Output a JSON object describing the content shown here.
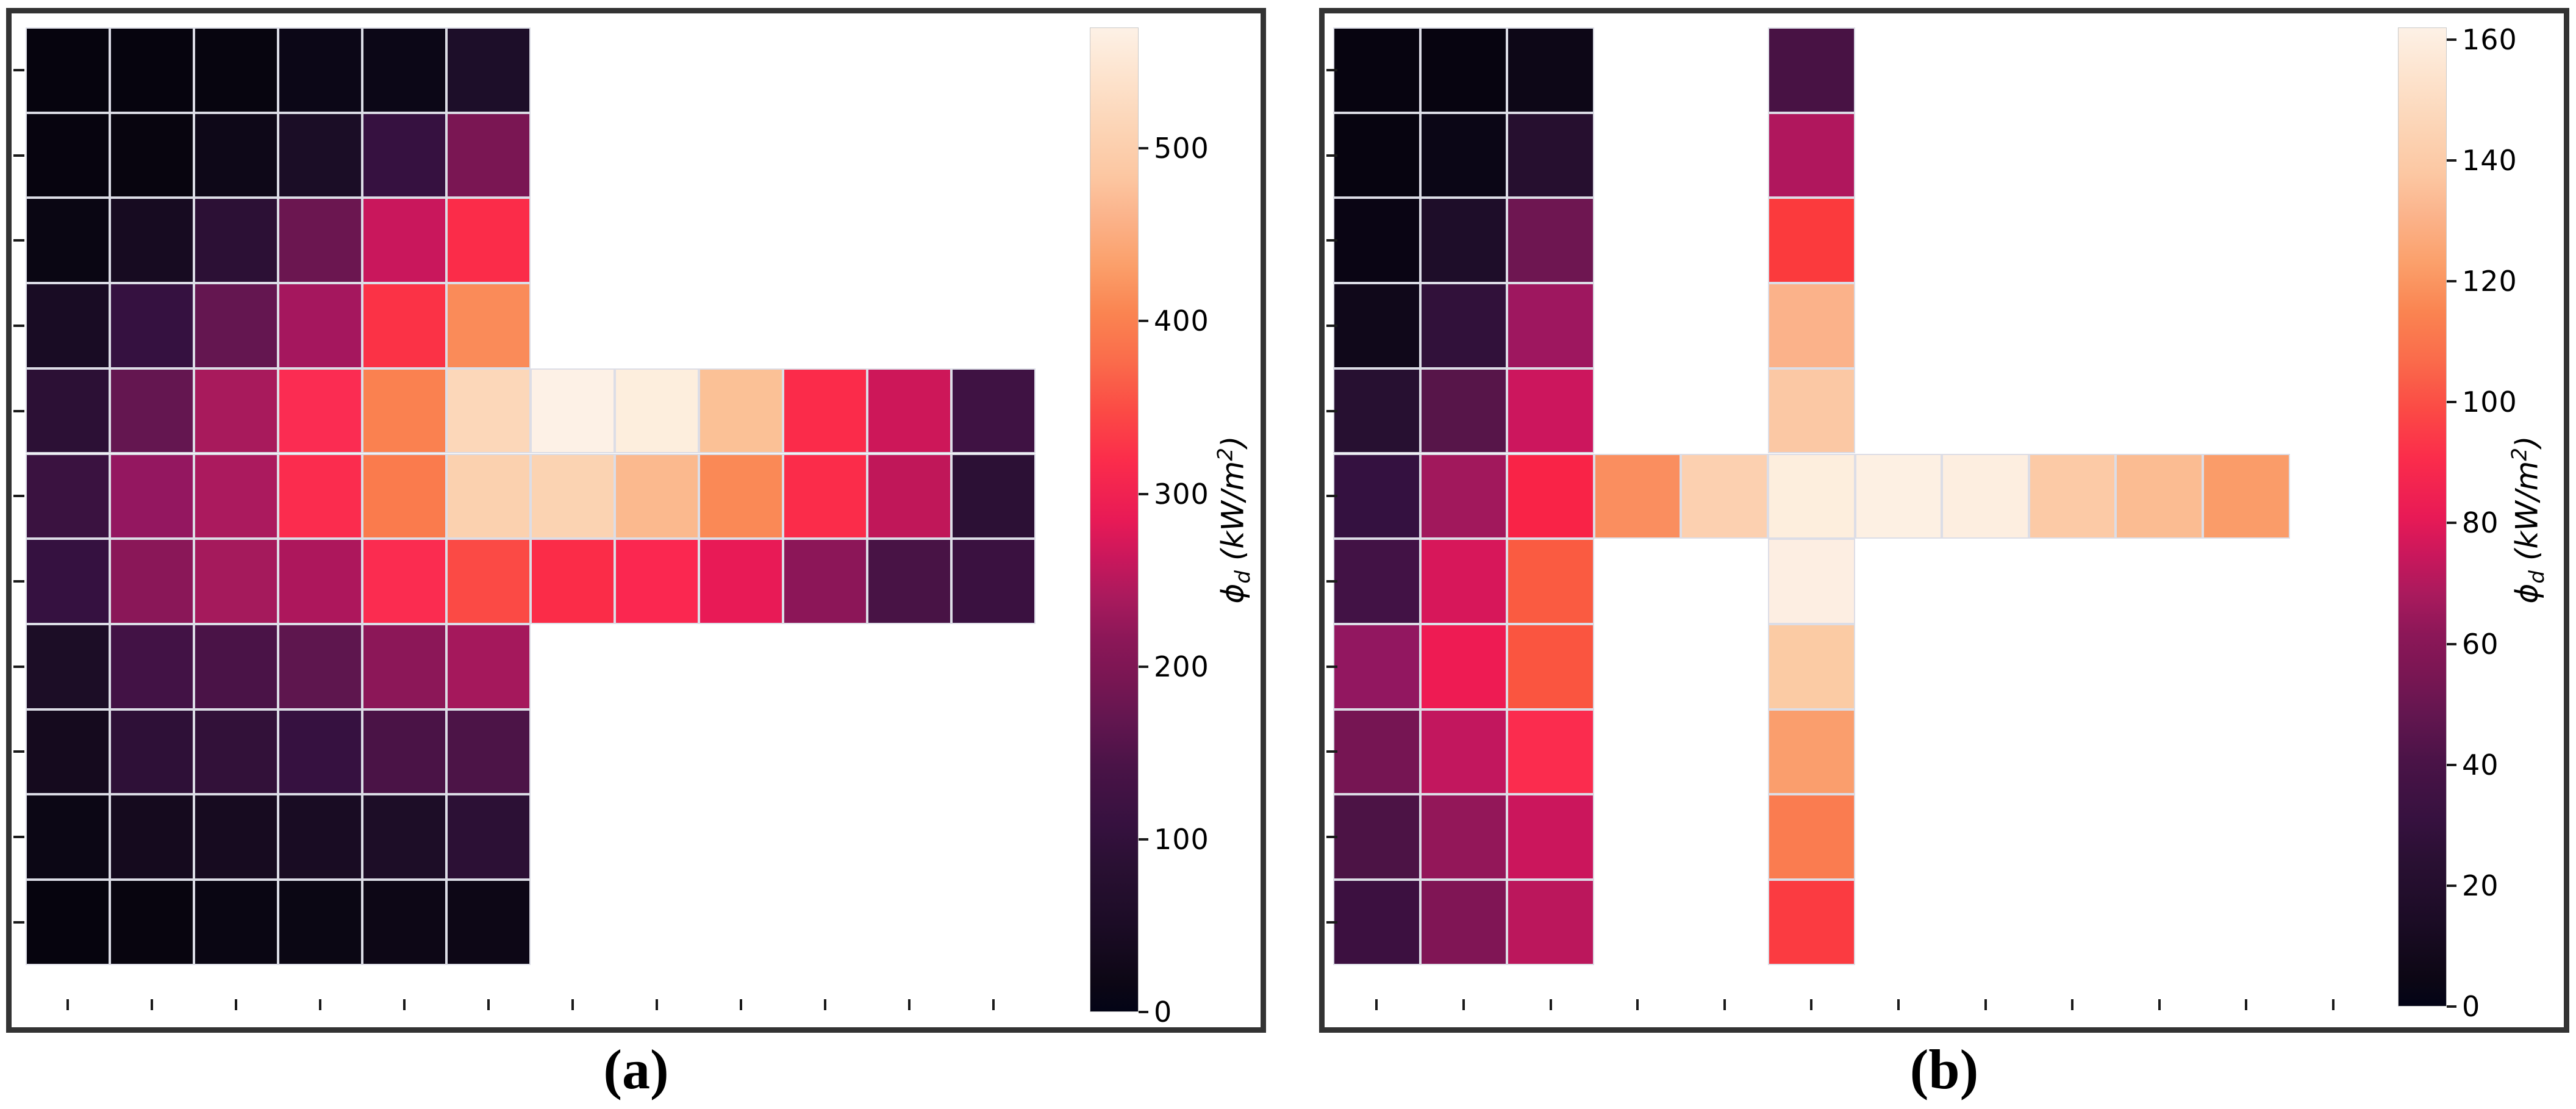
{
  "figure": {
    "background": "#ffffff",
    "frame_color": "#333333",
    "grid_line_color": "#dcdde6",
    "colormap": "rocket"
  },
  "panels": [
    {
      "id": "a",
      "caption": "(a)",
      "colorbar": {
        "vmin": 0,
        "vmax": 570,
        "ticks": [
          0,
          100,
          200,
          300,
          400,
          500
        ],
        "label": {
          "phi": "ϕ",
          "sub": "d",
          "units_open": " (kW/m",
          "sup": "2",
          "units_close": ")"
        }
      },
      "heatmap": {
        "rows": 11,
        "cols": 12,
        "cell_colors": [
          [
            "#06040e",
            "#06040e",
            "#07050f",
            "#0c0717",
            "#0c0717",
            "#1d0e29",
            null,
            null,
            null,
            null,
            null,
            null
          ],
          [
            "#07040f",
            "#08050f",
            "#0e0818",
            "#1b0d26",
            "#361140",
            "#7a1653",
            null,
            null,
            null,
            null,
            null,
            null
          ],
          [
            "#0a0613",
            "#170b21",
            "#2c1035",
            "#6b1650",
            "#c9175c",
            "#fb2c49",
            null,
            null,
            null,
            null,
            null,
            null
          ],
          [
            "#190c24",
            "#351140",
            "#641650",
            "#a5175e",
            "#fb3246",
            "#fa8b59",
            null,
            null,
            null,
            null,
            null,
            null
          ],
          [
            "#2c1035",
            "#641650",
            "#a81a5c",
            "#fb2c52",
            "#fa8150",
            "#fcd7b9",
            "#fdf1e6",
            "#fdeedd",
            "#fbc196",
            "#fb2b4a",
            "#cd1759",
            "#3f1243"
          ],
          [
            "#3a1240",
            "#941760",
            "#ab1a5e",
            "#fb2c4e",
            "#fa7b4d",
            "#fbd1af",
            "#fbd3b2",
            "#fbb98e",
            "#fa8956",
            "#fb2c4a",
            "#c01759",
            "#2c1035"
          ],
          [
            "#351140",
            "#8a1758",
            "#a51a5c",
            "#ad175c",
            "#fb2c50",
            "#fb4a45",
            "#fb2c48",
            "#fb2750",
            "#e81a56",
            "#8c1658",
            "#481345",
            "#3a1140"
          ],
          [
            "#1c0d26",
            "#421245",
            "#4a1347",
            "#5e164e",
            "#8c1758",
            "#a5185c",
            null,
            null,
            null,
            null,
            null,
            null
          ],
          [
            "#150a1e",
            "#2e1037",
            "#321139",
            "#361140",
            "#4a1346",
            "#4c1447",
            null,
            null,
            null,
            null,
            null,
            null
          ],
          [
            "#0c0715",
            "#150a1e",
            "#170b20",
            "#190c23",
            "#1d0d27",
            "#2c1035",
            null,
            null,
            null,
            null,
            null,
            null
          ],
          [
            "#06040e",
            "#08050f",
            "#0a0613",
            "#0b0714",
            "#0d0716",
            "#0d0716",
            null,
            null,
            null,
            null,
            null,
            null
          ]
        ]
      }
    },
    {
      "id": "b",
      "caption": "(b)",
      "colorbar": {
        "vmin": 0,
        "vmax": 162,
        "ticks": [
          0,
          20,
          40,
          60,
          80,
          100,
          120,
          140,
          160
        ],
        "label": {
          "phi": "ϕ",
          "sub": "d",
          "units_open": " (kW/m",
          "sup": "2",
          "units_close": ")"
        }
      },
      "heatmap": {
        "rows": 11,
        "cols": 12,
        "cell_colors": [
          [
            "#070410",
            "#070410",
            "#0d0717",
            null,
            null,
            "#481244",
            null,
            null,
            null,
            null,
            null,
            null
          ],
          [
            "#070410",
            "#0b0616",
            "#260f2f",
            null,
            null,
            "#b0175d",
            null,
            null,
            null,
            null,
            null,
            null
          ],
          [
            "#0a0514",
            "#1e0d29",
            "#6e1651",
            null,
            null,
            "#fb3a3d",
            null,
            null,
            null,
            null,
            null,
            null
          ],
          [
            "#10081a",
            "#31113a",
            "#9e175f",
            null,
            null,
            "#fbb28a",
            null,
            null,
            null,
            null,
            null,
            null
          ],
          [
            "#271031",
            "#571549",
            "#cc165d",
            null,
            null,
            "#fbc8a4",
            null,
            null,
            null,
            null,
            null,
            null
          ],
          [
            "#341140",
            "#a1185c",
            "#f92347",
            "#fa8e5f",
            "#fcd0b0",
            "#fdeedd",
            "#fdf0e3",
            "#fdeee0",
            "#fccaa6",
            "#fbbc92",
            "#fa9c69",
            null
          ],
          [
            "#421245",
            "#d7175a",
            "#fa5b41",
            null,
            null,
            "#fdeee2",
            null,
            null,
            null,
            null,
            null,
            null
          ],
          [
            "#921760",
            "#ee1b53",
            "#fa5540",
            null,
            null,
            "#fbcba4",
            null,
            null,
            null,
            null,
            null,
            null
          ],
          [
            "#761553",
            "#c2175e",
            "#fb2c4e",
            null,
            null,
            "#fa9e6d",
            null,
            null,
            null,
            null,
            null,
            null
          ],
          [
            "#4c1345",
            "#931759",
            "#cb165c",
            null,
            null,
            "#fa7c50",
            null,
            null,
            null,
            null,
            null,
            null
          ],
          [
            "#3c1040",
            "#801555",
            "#bb175c",
            null,
            null,
            "#fb3b41",
            null,
            null,
            null,
            null,
            null,
            null
          ]
        ]
      }
    }
  ],
  "chart_data": [
    {
      "type": "heatmap",
      "panel": "(a)",
      "colormap": "rocket",
      "colorbar_label": "ϕd (kW/m²)",
      "colorbar_ticks": [
        0,
        100,
        200,
        300,
        400,
        500
      ],
      "vmin": 0,
      "vmax": 570,
      "grid_shape": [
        11,
        12
      ],
      "axis_tick_labels": "none (unlabeled tick marks at every row/column center)",
      "values_kW_per_m2": [
        [
          8,
          8,
          9,
          12,
          12,
          55,
          null,
          null,
          null,
          null,
          null,
          null
        ],
        [
          9,
          10,
          16,
          52,
          108,
          190,
          null,
          null,
          null,
          null,
          null,
          null
        ],
        [
          11,
          45,
          95,
          172,
          256,
          312,
          null,
          null,
          null,
          null,
          null,
          null
        ],
        [
          56,
          110,
          162,
          228,
          316,
          398,
          null,
          null,
          null,
          null,
          null,
          null
        ],
        [
          95,
          162,
          226,
          312,
          390,
          498,
          560,
          548,
          462,
          310,
          258,
          118
        ],
        [
          112,
          206,
          232,
          312,
          386,
          494,
          496,
          456,
          408,
          312,
          250,
          95
        ],
        [
          105,
          200,
          224,
          230,
          310,
          330,
          312,
          308,
          284,
          200,
          130,
          108
        ],
        [
          62,
          120,
          130,
          150,
          200,
          224,
          null,
          null,
          null,
          null,
          null,
          null
        ],
        [
          48,
          98,
          102,
          108,
          130,
          134,
          null,
          null,
          null,
          null,
          null,
          null
        ],
        [
          12,
          45,
          48,
          52,
          60,
          95,
          null,
          null,
          null,
          null,
          null,
          null
        ],
        [
          8,
          10,
          11,
          12,
          13,
          13,
          null,
          null,
          null,
          null,
          null,
          null
        ]
      ]
    },
    {
      "type": "heatmap",
      "panel": "(b)",
      "colormap": "rocket",
      "colorbar_label": "ϕd (kW/m²)",
      "colorbar_ticks": [
        0,
        20,
        40,
        60,
        80,
        100,
        120,
        140,
        160
      ],
      "vmin": 0,
      "vmax": 162,
      "grid_shape": [
        11,
        12
      ],
      "axis_tick_labels": "none (unlabeled tick marks at every row/column center)",
      "values_kW_per_m2": [
        [
          3,
          3,
          5,
          null,
          null,
          35,
          null,
          null,
          null,
          null,
          null,
          null
        ],
        [
          3,
          8,
          25,
          null,
          null,
          65,
          null,
          null,
          null,
          null,
          null,
          null
        ],
        [
          5,
          20,
          50,
          null,
          null,
          92,
          null,
          null,
          null,
          null,
          null,
          null
        ],
        [
          12,
          30,
          60,
          null,
          null,
          122,
          null,
          null,
          null,
          null,
          null,
          null
        ],
        [
          22,
          42,
          73,
          null,
          null,
          132,
          null,
          null,
          null,
          null,
          null,
          null
        ],
        [
          28,
          58,
          88,
          110,
          138,
          156,
          158,
          155,
          134,
          126,
          112,
          null
        ],
        [
          32,
          68,
          96,
          null,
          null,
          157,
          null,
          null,
          null,
          null,
          null,
          null
        ],
        [
          58,
          82,
          97,
          null,
          null,
          135,
          null,
          null,
          null,
          null,
          null,
          null
        ],
        [
          50,
          68,
          90,
          null,
          null,
          116,
          null,
          null,
          null,
          null,
          null,
          null
        ],
        [
          35,
          59,
          74,
          null,
          null,
          103,
          null,
          null,
          null,
          null,
          null,
          null
        ],
        [
          28,
          52,
          67,
          null,
          null,
          92,
          null,
          null,
          null,
          null,
          null,
          null
        ]
      ]
    }
  ]
}
